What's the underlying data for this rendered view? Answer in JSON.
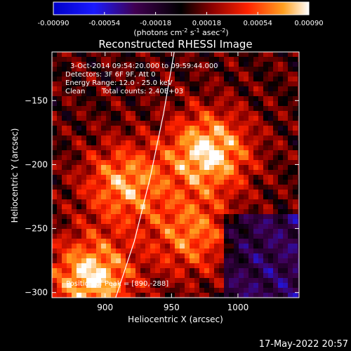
{
  "chart_data": {
    "type": "heatmap",
    "title": "Reconstructed RHESSI Image",
    "xlabel": "Heliocentric X (arcsec)",
    "ylabel": "Heliocentric Y (arcsec)",
    "xlim": [
      860,
      1046
    ],
    "ylim": [
      -304,
      -112
    ],
    "x_ticks": [
      900,
      950,
      1000
    ],
    "y_ticks": [
      -150,
      -200,
      -250,
      -300
    ],
    "colorbar": {
      "ticks": [
        "-0.00090",
        "-0.00054",
        "-0.00018",
        "0.00018",
        "0.00054",
        "0.00090"
      ],
      "range": [
        -0.0009,
        0.0009
      ],
      "units": "(photons cm",
      "units_sup1": "-2",
      "units_mid": " s",
      "units_sup2": "-1",
      "units_end": " asec",
      "units_sup3": "-2",
      "units_close": ")"
    },
    "annotations": {
      "time": "3-Oct-2014 09:54:20.000 to 09:59:44.000",
      "detectors": "Detectors: 3F 6F 9F, Att 0",
      "energy": "Energy Range: 12.0 - 25.0 keV",
      "clean_label": "Clean",
      "total_counts": "Total counts: 2.40E+03",
      "peak": "Position of Peak = [890,-288]"
    },
    "sources": [
      {
        "x": 978,
        "y": -190,
        "peak": 0.0009
      },
      {
        "x": 890,
        "y": -288,
        "peak": 0.0009
      },
      {
        "x": 915,
        "y": -215,
        "peak": 0.0007
      },
      {
        "x": 965,
        "y": -255,
        "peak": 0.0006
      }
    ],
    "limb_curve": [
      [
        908,
        -304
      ],
      [
        922,
        -260
      ],
      [
        934,
        -210
      ],
      [
        944,
        -160
      ],
      [
        952,
        -112
      ]
    ]
  },
  "footer": {
    "timestamp": "17-May-2022 20:57"
  }
}
